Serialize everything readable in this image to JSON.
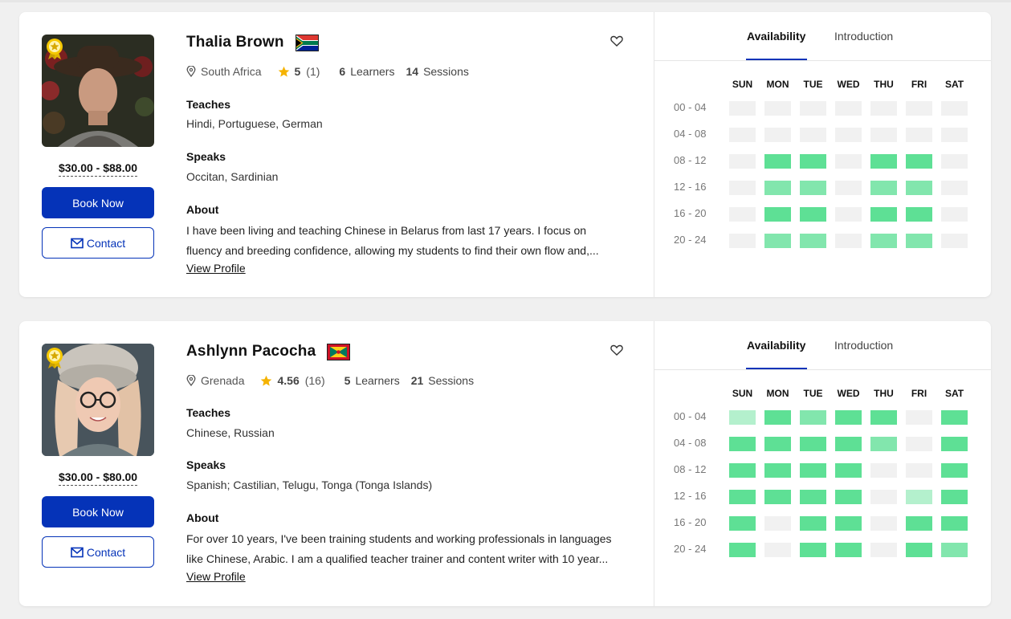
{
  "colors": {
    "primary": "#0533b8",
    "avail_high": "#5ee095",
    "avail_mid": "#82e6ad",
    "avail_low": "#b4f0cd",
    "avail_none": "#f1f1f1"
  },
  "days": [
    "SUN",
    "MON",
    "TUE",
    "WED",
    "THU",
    "FRI",
    "SAT"
  ],
  "times": [
    "00 - 04",
    "04 - 08",
    "08 - 12",
    "12 - 16",
    "16 - 20",
    "20 - 24"
  ],
  "tabs": {
    "availability": "Availability",
    "introduction": "Introduction"
  },
  "labels": {
    "teaches": "Teaches",
    "speaks": "Speaks",
    "about": "About",
    "book": "Book Now",
    "contact": "Contact",
    "view_profile": "View Profile",
    "learners": "Learners",
    "sessions": "Sessions"
  },
  "tutors": [
    {
      "name": "Thalia Brown",
      "flag": "south-africa",
      "country": "South Africa",
      "rating": "5",
      "reviews": "(1)",
      "learners": "6",
      "sessions": "14",
      "price": "$30.00 - $88.00",
      "teaches": "Hindi, Portuguese, German",
      "speaks": "Occitan, Sardinian",
      "about_line1": "I have been living and teaching Chinese in Belarus from last 17 years. I focus on",
      "about_line2": "fluency and breeding confidence, allowing my students to find their own flow and,...",
      "availability": [
        [
          0,
          0,
          0,
          0,
          0,
          0,
          0
        ],
        [
          0,
          0,
          0,
          0,
          0,
          0,
          0
        ],
        [
          0,
          3,
          3,
          0,
          3,
          3,
          0
        ],
        [
          0,
          2,
          2,
          0,
          2,
          2,
          0
        ],
        [
          0,
          3,
          3,
          0,
          3,
          3,
          0
        ],
        [
          0,
          2,
          2,
          0,
          2,
          2,
          0
        ]
      ]
    },
    {
      "name": "Ashlynn Pacocha",
      "flag": "grenada",
      "country": "Grenada",
      "rating": "4.56",
      "reviews": "(16)",
      "learners": "5",
      "sessions": "21",
      "price": "$30.00 - $80.00",
      "teaches": "Chinese, Russian",
      "speaks": "Spanish; Castilian, Telugu, Tonga (Tonga Islands)",
      "about_line1": "For over 10 years, I've been training students and working professionals in languages",
      "about_line2": "like Chinese, Arabic. I am a qualified teacher trainer and content writer with 10 year...",
      "availability": [
        [
          1,
          3,
          2,
          3,
          3,
          0,
          3
        ],
        [
          3,
          3,
          3,
          3,
          2,
          0,
          3
        ],
        [
          3,
          3,
          3,
          3,
          0,
          0,
          3
        ],
        [
          3,
          3,
          3,
          3,
          0,
          1,
          3
        ],
        [
          3,
          0,
          3,
          3,
          0,
          3,
          3
        ],
        [
          3,
          0,
          3,
          3,
          0,
          3,
          2
        ]
      ]
    }
  ]
}
